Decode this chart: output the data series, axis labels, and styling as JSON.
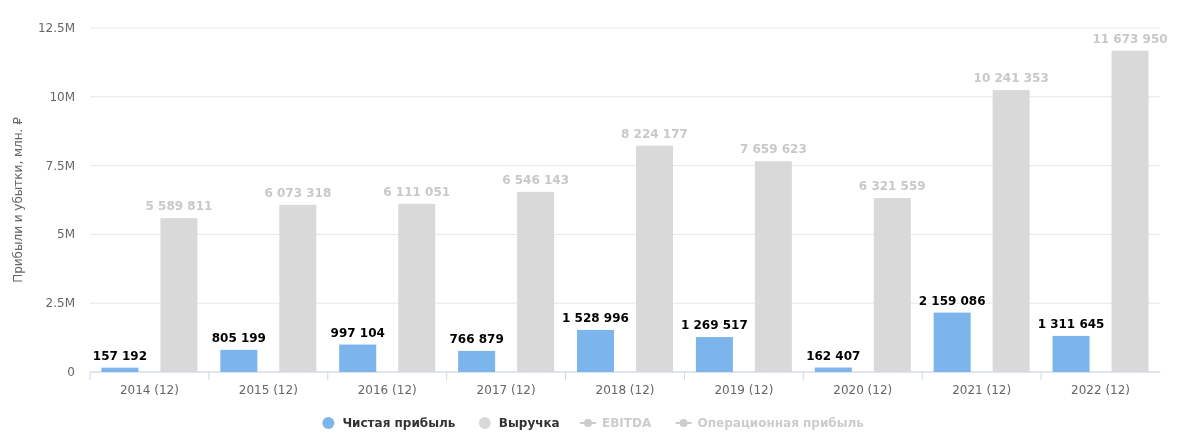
{
  "chart_data": {
    "type": "bar",
    "ylabel": "Прибыли и убытки, млн. ₽",
    "categories": [
      "2014 (12)",
      "2015 (12)",
      "2016 (12)",
      "2017 (12)",
      "2018 (12)",
      "2019 (12)",
      "2020 (12)",
      "2021 (12)",
      "2022 (12)"
    ],
    "series": [
      {
        "name": "Чистая прибыль",
        "color": "#7cb5ec",
        "values": [
          157192,
          805199,
          997104,
          766879,
          1528996,
          1269517,
          162407,
          2159086,
          1311645
        ]
      },
      {
        "name": "Выручка",
        "color": "#d9d9d9",
        "values": [
          5589811,
          6073318,
          6111051,
          6546143,
          8224177,
          7659623,
          6321559,
          10241353,
          11673950
        ]
      },
      {
        "name": "EBITDA",
        "type": "line",
        "color": "#cccccc",
        "values": [
          null,
          null,
          null,
          null,
          null,
          null,
          null,
          null,
          null
        ]
      },
      {
        "name": "Операционная прибыль",
        "type": "line",
        "color": "#cccccc",
        "values": [
          null,
          null,
          null,
          null,
          null,
          null,
          null,
          null,
          null
        ]
      }
    ],
    "ylim": [
      0,
      12500000
    ],
    "yticks": [
      0,
      {
        "value": 2500000,
        "label": "2.5M"
      },
      {
        "value": 5000000,
        "label": "5M"
      },
      {
        "value": 7500000,
        "label": "7.5M"
      },
      {
        "value": 10000000,
        "label": "10M"
      },
      {
        "value": 12500000,
        "label": "12.5M"
      }
    ],
    "grid": "y",
    "legend": "bottom",
    "data_labels": true
  }
}
